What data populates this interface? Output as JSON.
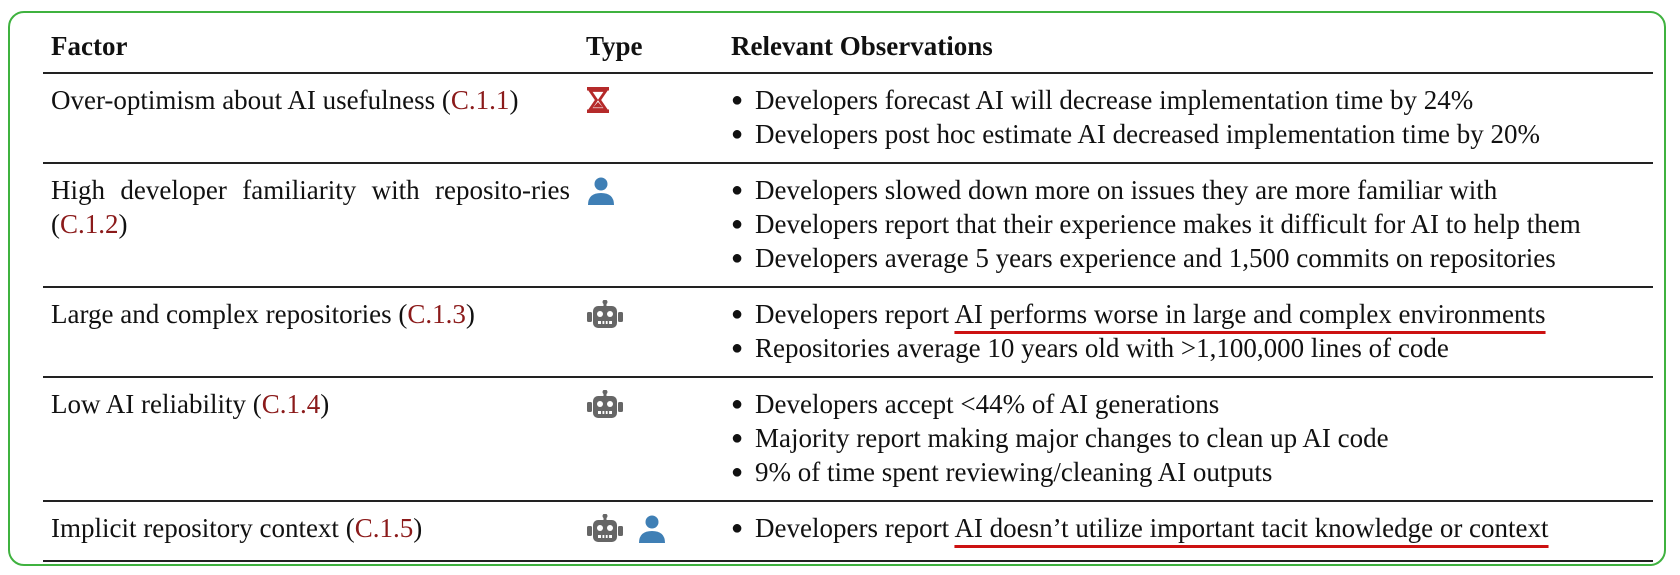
{
  "headers": {
    "factor": "Factor",
    "type": "Type",
    "observations": "Relevant Observations"
  },
  "colors": {
    "border": "#3fb23f",
    "ref": "#8b1a1a",
    "hourglass": "#b52a2a",
    "person": "#3f7fb5",
    "robot": "#666666",
    "underline": "#cc1111"
  },
  "rows": [
    {
      "factor": "Over-optimism about AI usefulness",
      "ref": "C.1.1",
      "icons": [
        "hourglass-icon"
      ],
      "observations": [
        "Developers forecast AI will decrease implementation time by 24%",
        "Developers post hoc estimate AI decreased implementation time by 20%"
      ]
    },
    {
      "factor": "High developer familiarity with reposito-ries",
      "ref": "C.1.2",
      "icons": [
        "person-icon"
      ],
      "observations": [
        "Developers slowed down more on issues they are more familiar with",
        "Developers report that their experience makes it difficult for AI to help them",
        "Developers average 5 years experience and 1,500 commits on repositories"
      ]
    },
    {
      "factor": "Large and complex repositories",
      "ref": "C.1.3",
      "icons": [
        "robot-icon"
      ],
      "obs1_prefix": "Developers report ",
      "obs1_highlight": "AI performs worse in large and complex environments",
      "observations": [
        "Repositories average 10 years old with >1,100,000 lines of code"
      ]
    },
    {
      "factor": "Low AI reliability",
      "ref": "C.1.4",
      "icons": [
        "robot-icon"
      ],
      "observations": [
        "Developers accept <44% of AI generations",
        "Majority report making major changes to clean up AI code",
        "9% of time spent reviewing/cleaning AI outputs"
      ]
    },
    {
      "factor": "Implicit repository context",
      "ref": "C.1.5",
      "icons": [
        "robot-icon",
        "person-icon"
      ],
      "obs1_prefix": "Developers report ",
      "obs1_highlight": "AI doesn’t utilize important tacit knowledge or context"
    }
  ]
}
